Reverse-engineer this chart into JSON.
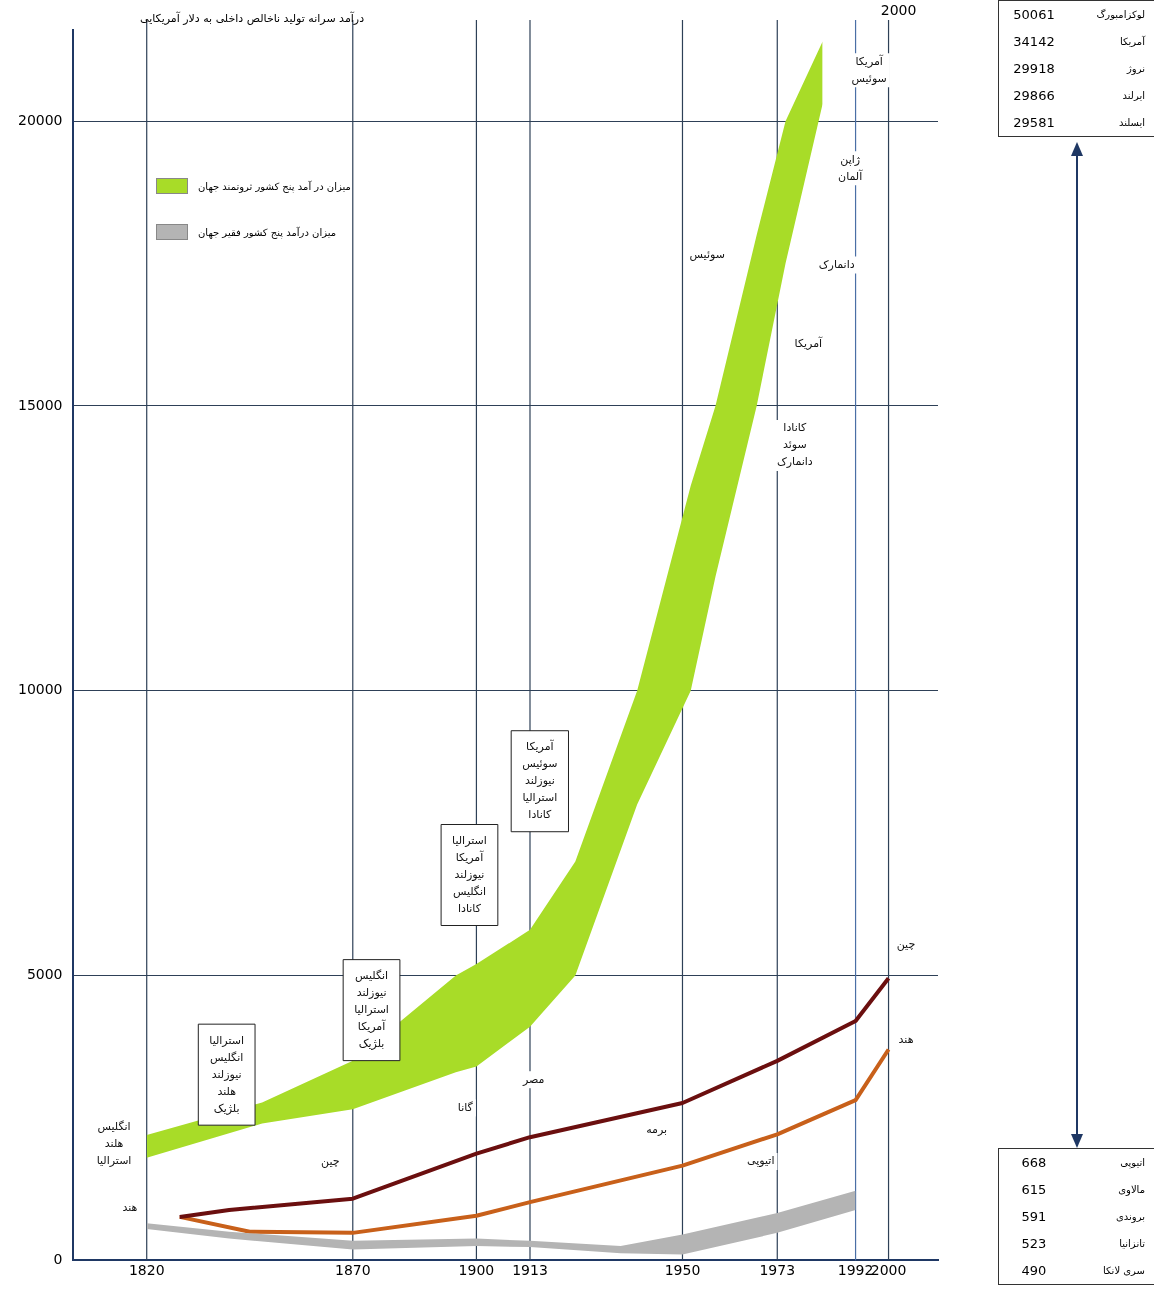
{
  "chart_data": [
    {
      "type": "line",
      "title": "درآمد سرانه تولید ناخالص داخلی به دلار آمریکایی",
      "xlim": [
        1802,
        2012
      ],
      "xticks": [
        1820,
        1870,
        1900,
        1913,
        1950,
        1973,
        1992,
        2000
      ],
      "ylim": [
        0,
        21600
      ],
      "yticks": [
        0,
        5000,
        10000,
        15000,
        20000
      ],
      "grid": "y",
      "legend": "top left",
      "line_style": "solid",
      "marker": "none",
      "series": [
        {
          "name": "میزان در آمد پنج کشور ثروتمند جهان",
          "type": "area",
          "color": "#a8dc28",
          "x": [
            1820,
            1848,
            1870,
            1895,
            1900,
            1913,
            1924,
            1939,
            1952,
            1958,
            1968,
            1975,
            1984
          ],
          "values": [
            null,
            null,
            null,
            null,
            null,
            null,
            null,
            null,
            null,
            null,
            null,
            null,
            null
          ],
          "upper": [
            2200,
            2770,
            3500,
            5000,
            5200,
            5800,
            7000,
            10000,
            13600,
            15000,
            18000,
            20000,
            21400
          ],
          "lower": [
            1800,
            2400,
            2650,
            3300,
            3400,
            4100,
            5000,
            8000,
            10000,
            12000,
            15000,
            17500,
            20300
          ]
        },
        {
          "name": "میزان درآمد پنج کشور فقیر جهان",
          "type": "area",
          "color": "#b4b4b4",
          "x": [
            1820,
            1840,
            1870,
            1900,
            1913,
            1935,
            1950,
            1973,
            1992
          ],
          "values": [
            null,
            null,
            null,
            null,
            null,
            null,
            null,
            null,
            null
          ],
          "upper": [
            650,
            500,
            340,
            380,
            340,
            250,
            450,
            830,
            1220
          ],
          "lower": [
            550,
            380,
            190,
            250,
            230,
            120,
            100,
            480,
            880
          ]
        },
        {
          "color": "#6b0f0f",
          "x": [
            1828,
            1840,
            1870,
            1900,
            1913,
            1950,
            1973,
            1992,
            2000
          ],
          "values": [
            760,
            880,
            1080,
            1870,
            2160,
            2760,
            3500,
            4200,
            4950
          ]
        },
        {
          "color": "#c8601a",
          "x": [
            1828,
            1845,
            1870,
            1900,
            1913,
            1950,
            1973,
            1992,
            2000
          ],
          "values": [
            760,
            500,
            480,
            780,
            1020,
            1660,
            2210,
            2810,
            3700
          ]
        }
      ],
      "ref_lines": [
        {
          "axis": "x",
          "value": 1820,
          "color": "#2e4057"
        },
        {
          "axis": "x",
          "value": 1870,
          "color": "#2e4057"
        },
        {
          "axis": "x",
          "value": 1900,
          "color": "#2e4057"
        },
        {
          "axis": "x",
          "value": 1913,
          "color": "#2e4057"
        },
        {
          "axis": "x",
          "value": 1950,
          "color": "#2e4057"
        },
        {
          "axis": "x",
          "value": 1973,
          "color": "#2e4057"
        },
        {
          "axis": "x",
          "value": 1992,
          "color": "#4a6fa5"
        },
        {
          "axis": "x",
          "value": 2000,
          "label": "2000",
          "color": "#2e4057"
        }
      ],
      "annotations": [
        "انگلیس\nهلند\nاسترالیا",
        "استرالیا\nانگلیس\nنیوزلند\nهلند\nبلژیک",
        "انگلیس\nنیوزلند\nاسترالیا\nآمریکا\nبلژیک",
        "استرالیا\nآمریکا\nنیوزلند\nانگلیس\nکانادا",
        "آمریکا\nسوئیس\nنیوزلند\nاسترالیا\nکانادا",
        "آمریکا\nسوئیس",
        "ژاپن\nآلمان",
        "دانمارک",
        "سوئیس",
        "آمریکا",
        "کانادا\nسوئد\nدانمارک",
        "چین",
        "هند",
        "مصر",
        "گانا",
        "برمه",
        "اتیوپی",
        "چین",
        "هند"
      ]
    },
    {
      "type": "other",
      "annotations": [
        "50061",
        "لوکزامبورگ",
        "34142",
        "آمریکا",
        "29918",
        "نروژ",
        "29866",
        "ایرلند",
        "29581",
        "ایسلند"
      ]
    },
    {
      "type": "other",
      "annotations": [
        "668",
        "اتیوپی",
        "615",
        "مالاوی",
        "591",
        "بروندی",
        "523",
        "تانزانیا",
        "490",
        "سری لانکا"
      ]
    }
  ]
}
